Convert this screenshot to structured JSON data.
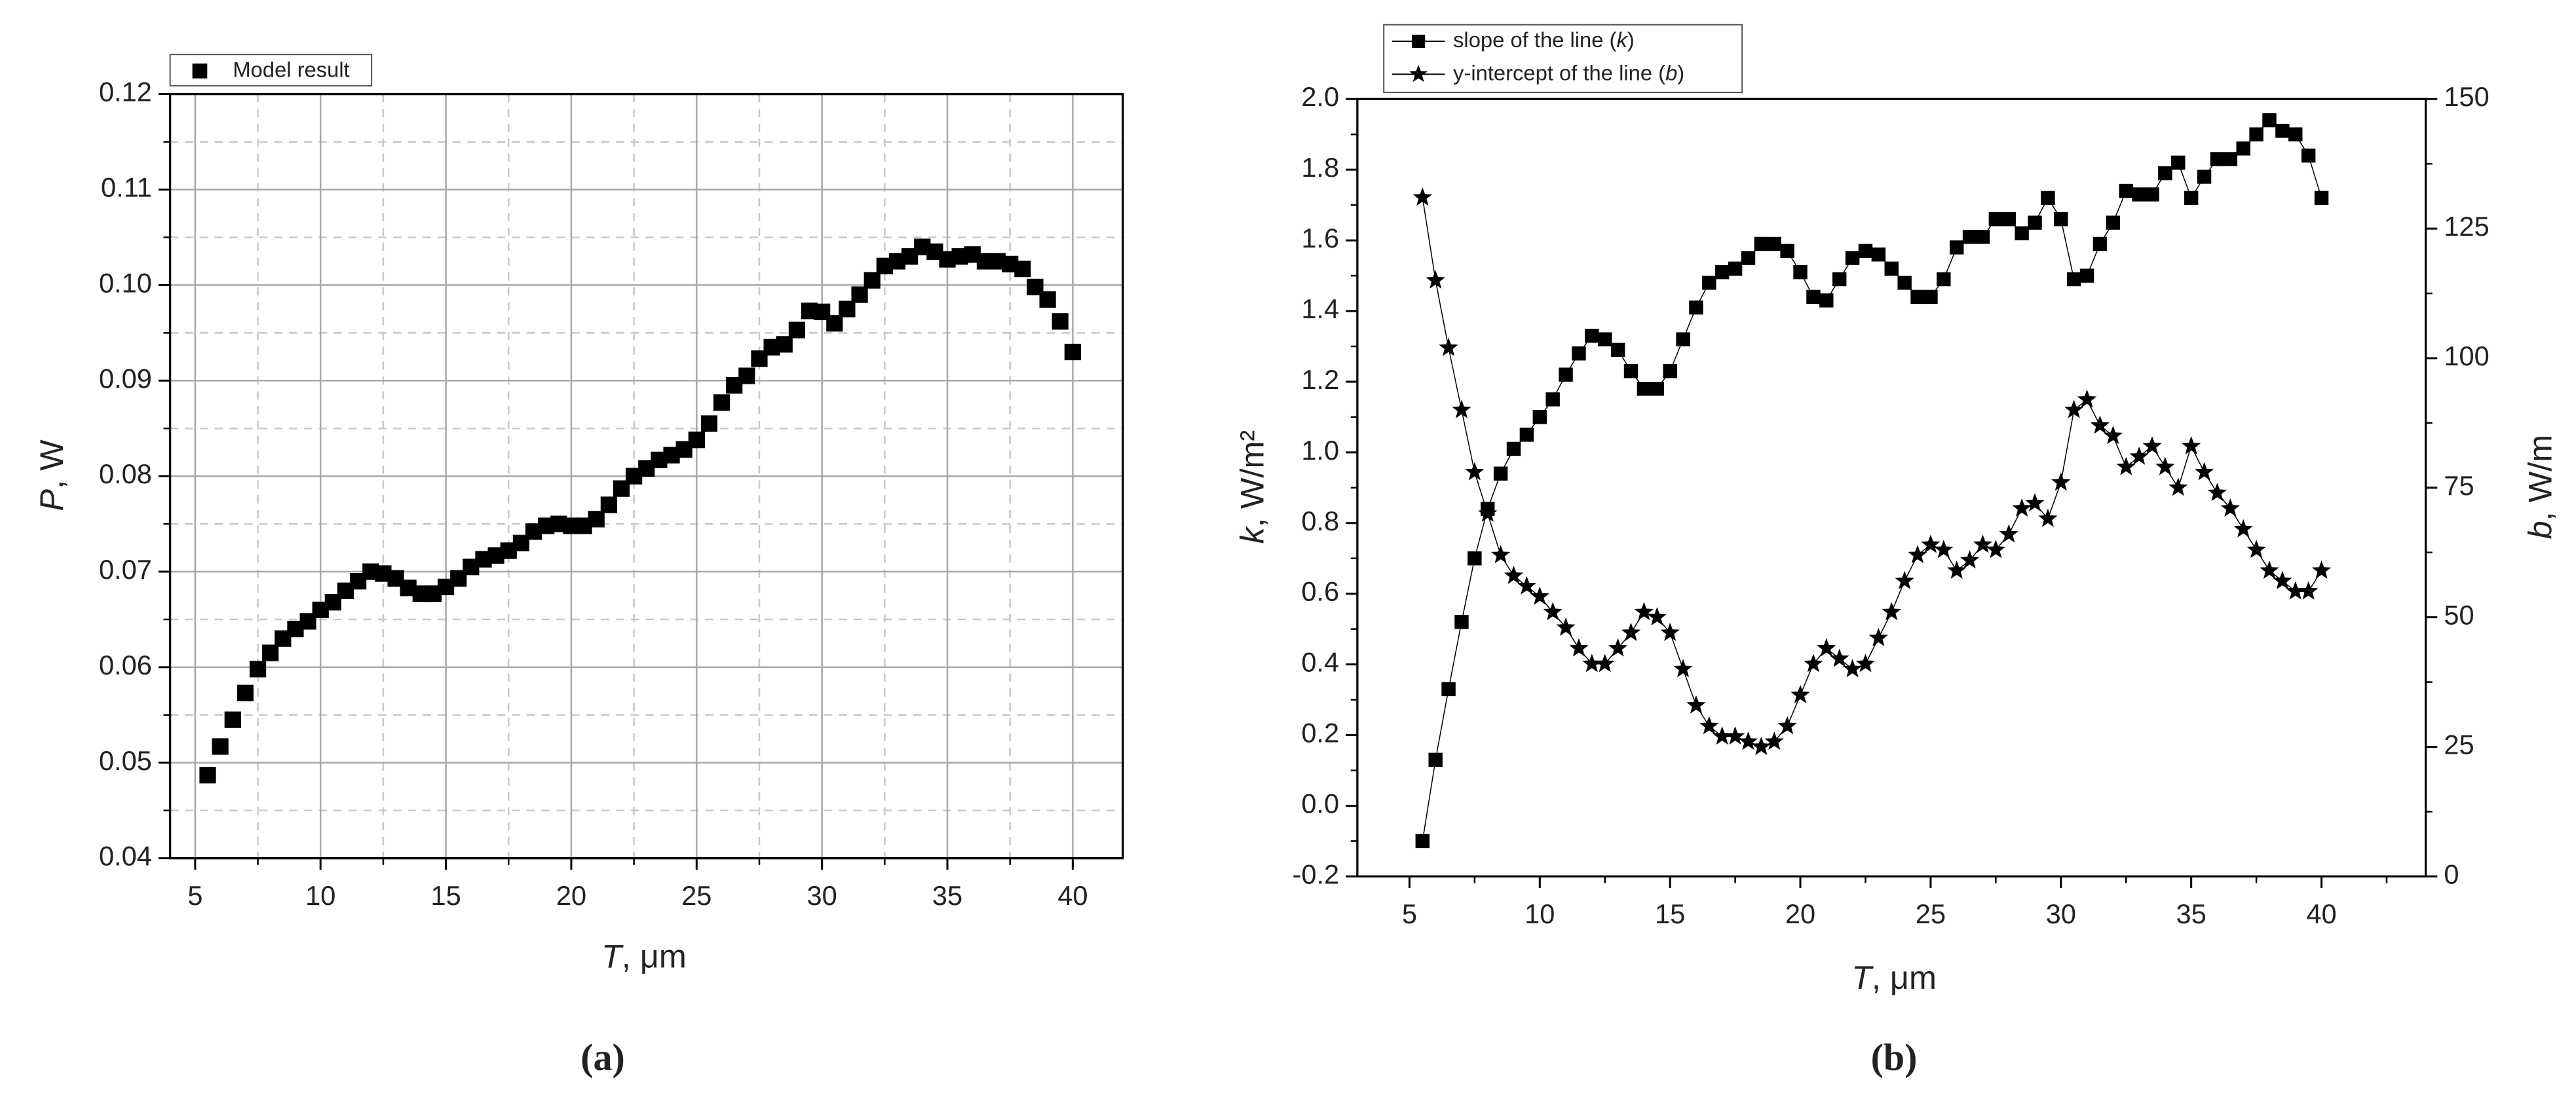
{
  "chart_data": [
    {
      "type": "scatter",
      "caption": "(a)",
      "x_label": "T, μm",
      "y_label": "P, W",
      "x": [
        5.5,
        6,
        6.5,
        7,
        7.5,
        8,
        8.5,
        9,
        9.5,
        10,
        10.5,
        11,
        11.5,
        12,
        12.5,
        13,
        13.5,
        14,
        14.5,
        15,
        15.5,
        16,
        16.5,
        17,
        17.5,
        18,
        18.5,
        19,
        19.5,
        20,
        20.5,
        21,
        21.5,
        22,
        22.5,
        23,
        23.5,
        24,
        24.5,
        25,
        25.5,
        26,
        26.5,
        27,
        27.5,
        28,
        28.5,
        29,
        29.5,
        30,
        30.5,
        31,
        31.5,
        32,
        32.5,
        33,
        33.5,
        34,
        34.5,
        35,
        35.5,
        36,
        36.5,
        37,
        37.5,
        38,
        38.5,
        39,
        39.5,
        40
      ],
      "series": [
        {
          "name": "Model result",
          "color": "#000000",
          "marker": "square",
          "values": [
            0.0487,
            0.0517,
            0.0545,
            0.0573,
            0.0598,
            0.0615,
            0.063,
            0.064,
            0.0648,
            0.066,
            0.0668,
            0.068,
            0.069,
            0.07,
            0.0698,
            0.0693,
            0.0683,
            0.0677,
            0.0677,
            0.0684,
            0.0693,
            0.0705,
            0.0713,
            0.0717,
            0.0722,
            0.073,
            0.0742,
            0.0748,
            0.075,
            0.0748,
            0.0748,
            0.0755,
            0.077,
            0.0787,
            0.08,
            0.0808,
            0.0817,
            0.0822,
            0.0828,
            0.0838,
            0.0855,
            0.0877,
            0.0895,
            0.0905,
            0.0923,
            0.0935,
            0.0938,
            0.0953,
            0.0973,
            0.0972,
            0.096,
            0.0975,
            0.099,
            0.1005,
            0.102,
            0.1025,
            0.103,
            0.104,
            0.1035,
            0.1027,
            0.103,
            0.1032,
            0.1025,
            0.1025,
            0.1022,
            0.1017,
            0.0998,
            0.0985,
            0.0962,
            0.093
          ]
        }
      ],
      "xlim": [
        4,
        42
      ],
      "xticks": [
        5,
        10,
        15,
        20,
        25,
        30,
        35,
        40
      ],
      "minor_xticks": [
        7.5,
        12.5,
        17.5,
        22.5,
        27.5,
        32.5,
        37.5
      ],
      "ylim": [
        0.04,
        0.12
      ],
      "yticks": [
        0.04,
        0.05,
        0.06,
        0.07,
        0.08,
        0.09,
        {
          "value": 0.1,
          "label": "0.10"
        },
        0.11,
        0.12
      ],
      "minor_yticks": [
        0.045,
        0.055,
        0.065,
        0.075,
        0.085,
        0.095,
        0.105,
        0.115
      ],
      "grid": true
    },
    {
      "type": "line",
      "caption": "(b)",
      "x_label": "T, μm",
      "y_label": "k, W/m²",
      "y2_label": "b, W/m",
      "x": [
        5.5,
        6,
        6.5,
        7,
        7.5,
        8,
        8.5,
        9,
        9.5,
        10,
        10.5,
        11,
        11.5,
        12,
        12.5,
        13,
        13.5,
        14,
        14.5,
        15,
        15.5,
        16,
        16.5,
        17,
        17.5,
        18,
        18.5,
        19,
        19.5,
        20,
        20.5,
        21,
        21.5,
        22,
        22.5,
        23,
        23.5,
        24,
        24.5,
        25,
        25.5,
        26,
        26.5,
        27,
        27.5,
        28,
        28.5,
        29,
        29.5,
        30,
        30.5,
        31,
        31.5,
        32,
        32.5,
        33,
        33.5,
        34,
        34.5,
        35,
        35.5,
        36,
        36.5,
        37,
        37.5,
        38,
        38.5,
        39,
        39.5,
        40
      ],
      "series": [
        {
          "name": "slope of the line (k)",
          "color": "#000000",
          "marker": "square",
          "values": [
            -0.1,
            0.13,
            0.33,
            0.52,
            0.7,
            0.84,
            0.94,
            1.01,
            1.05,
            1.1,
            1.15,
            1.22,
            1.28,
            1.33,
            1.32,
            1.29,
            1.23,
            1.18,
            1.18,
            1.23,
            1.32,
            1.41,
            1.48,
            1.51,
            1.52,
            1.55,
            1.59,
            1.59,
            1.57,
            1.51,
            1.44,
            1.43,
            1.49,
            1.55,
            1.57,
            1.56,
            1.52,
            1.48,
            1.44,
            1.44,
            1.49,
            1.58,
            1.61,
            1.61,
            1.66,
            1.66,
            1.62,
            1.65,
            1.72,
            1.66,
            1.49,
            1.5,
            1.59,
            1.65,
            1.74,
            1.73,
            1.73,
            1.79,
            1.82,
            1.72,
            1.78,
            1.83,
            1.83,
            1.86,
            1.9,
            1.94,
            1.91,
            1.9,
            1.84,
            1.72
          ]
        },
        {
          "name": "y-intercept of the line (b)",
          "color": "#000000",
          "marker": "star",
          "axis": "y2",
          "values": [
            131,
            115,
            102,
            90,
            78,
            70,
            62,
            58,
            56,
            54,
            51,
            48,
            44,
            41,
            41,
            44,
            47,
            51,
            50,
            47,
            40,
            33,
            29,
            27,
            27,
            26,
            25,
            26,
            29,
            35,
            41,
            44,
            42,
            40,
            41,
            46,
            51,
            57,
            62,
            64,
            63,
            59,
            61,
            64,
            63,
            66,
            71,
            72,
            69,
            76,
            90,
            92,
            87,
            85,
            79,
            81,
            83,
            79,
            75,
            83,
            78,
            74,
            71,
            67,
            63,
            59,
            57,
            55,
            55,
            59
          ]
        }
      ],
      "xlim": [
        3,
        44
      ],
      "xticks": [
        5,
        10,
        15,
        20,
        25,
        30,
        35,
        40
      ],
      "minor_xticks": [
        7.5,
        12.5,
        17.5,
        22.5,
        27.5,
        32.5,
        37.5,
        42.5
      ],
      "ylim": [
        -0.2,
        2.0
      ],
      "yticks": [
        -0.2,
        {
          "value": 0,
          "label": "0.0"
        },
        0.2,
        0.4,
        0.6,
        0.8,
        {
          "value": 1,
          "label": "1.0"
        },
        1.2,
        1.4,
        1.6,
        1.8,
        {
          "value": 2,
          "label": "2.0"
        }
      ],
      "minor_yticks": [
        -0.1,
        0.1,
        0.3,
        0.5,
        0.7,
        0.9,
        1.1,
        1.3,
        1.5,
        1.7,
        1.9
      ],
      "y2lim": [
        0,
        150
      ],
      "y2ticks": [
        0,
        25,
        50,
        75,
        100,
        125,
        150
      ],
      "minor_y2ticks": [
        12.5,
        37.5,
        62.5,
        87.5,
        112.5,
        137.5
      ],
      "grid": false
    }
  ]
}
